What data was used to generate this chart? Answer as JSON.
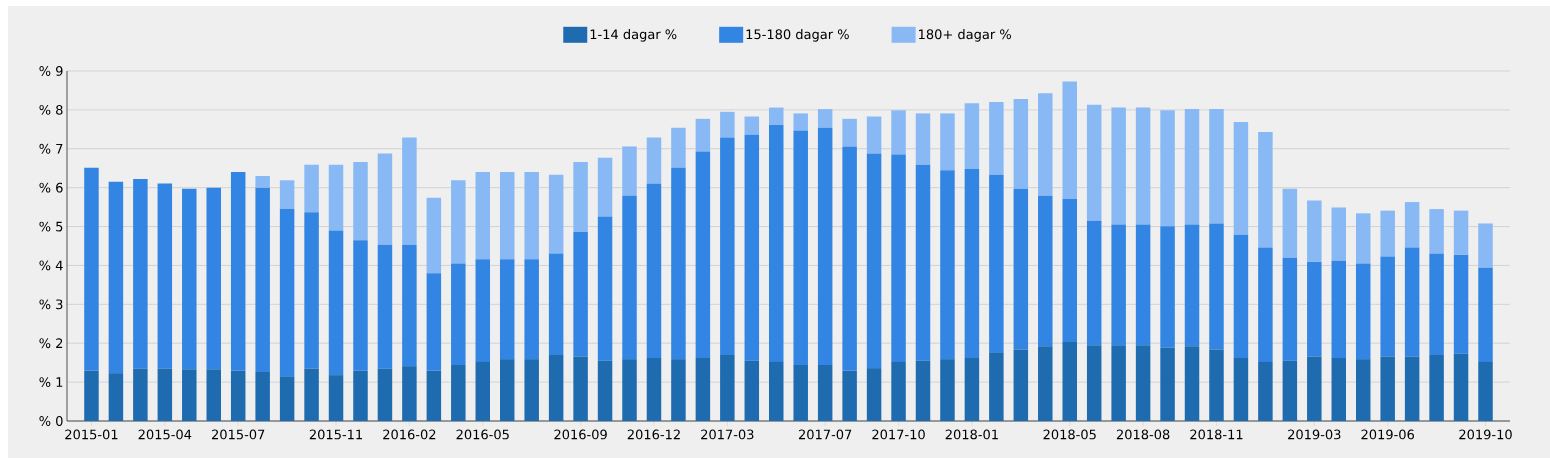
{
  "chart_data": {
    "type": "bar",
    "stacked": true,
    "legend": "top",
    "grid": "y",
    "categories": [
      "2015-01",
      null,
      null,
      "2015-04",
      null,
      null,
      "2015-07",
      null,
      null,
      null,
      "2015-11",
      null,
      null,
      "2016-02",
      null,
      null,
      "2016-05",
      null,
      null,
      null,
      "2016-09",
      null,
      null,
      "2016-12",
      null,
      null,
      "2017-03",
      null,
      null,
      null,
      "2017-07",
      null,
      null,
      "2017-10",
      null,
      null,
      "2018-01",
      null,
      null,
      null,
      "2018-05",
      null,
      null,
      "2018-08",
      null,
      null,
      "2018-11",
      null,
      null,
      null,
      "2019-03",
      null,
      null,
      "2019-06",
      null,
      null,
      null,
      "2019-10"
    ],
    "ylim": [
      0,
      9
    ],
    "yticks": [
      {
        "value": 0,
        "label": "% 0"
      },
      {
        "value": 1,
        "label": "% 1"
      },
      {
        "value": 2,
        "label": "% 2"
      },
      {
        "value": 3,
        "label": "% 3"
      },
      {
        "value": 4,
        "label": "% 4"
      },
      {
        "value": 5,
        "label": "% 5"
      },
      {
        "value": 6,
        "label": "% 6"
      },
      {
        "value": 7,
        "label": "% 7"
      },
      {
        "value": 8,
        "label": "% 8"
      },
      {
        "value": 9,
        "label": "% 9"
      }
    ],
    "series": [
      {
        "name": "1-14 dagar %",
        "color": "#1f6bb0",
        "values": [
          1.29,
          1.23,
          1.35,
          1.35,
          1.33,
          1.33,
          1.29,
          1.26,
          1.15,
          1.35,
          1.18,
          1.29,
          1.35,
          1.41,
          1.29,
          1.44,
          1.52,
          1.59,
          1.59,
          1.7,
          1.66,
          1.55,
          1.59,
          1.62,
          1.59,
          1.62,
          1.7,
          1.55,
          1.52,
          1.44,
          1.44,
          1.29,
          1.36,
          1.52,
          1.55,
          1.59,
          1.62,
          1.77,
          1.84,
          1.92,
          2.03,
          1.95,
          1.95,
          1.95,
          1.89,
          1.92,
          1.84,
          1.62,
          1.52,
          1.55,
          1.66,
          1.62,
          1.59,
          1.66,
          1.66,
          1.7,
          1.73,
          1.52
        ]
      },
      {
        "name": "15-180 dagar %",
        "color": "#3385e3",
        "values": [
          5.22,
          4.92,
          4.87,
          4.76,
          4.64,
          4.67,
          5.11,
          4.74,
          4.3,
          4.02,
          3.72,
          3.36,
          3.18,
          3.12,
          2.51,
          2.61,
          2.64,
          2.57,
          2.57,
          2.61,
          3.2,
          3.71,
          4.2,
          4.49,
          4.92,
          5.31,
          5.59,
          5.81,
          6.1,
          6.03,
          6.1,
          5.77,
          5.52,
          5.33,
          5.04,
          4.86,
          4.86,
          4.56,
          4.13,
          3.87,
          3.68,
          3.2,
          3.1,
          3.1,
          3.12,
          3.13,
          3.24,
          3.17,
          2.94,
          2.65,
          2.43,
          2.5,
          2.46,
          2.57,
          2.8,
          2.61,
          2.54,
          2.42
        ]
      },
      {
        "name": "180+ dagar %",
        "color": "#88b9f5",
        "values": [
          null,
          null,
          null,
          null,
          null,
          null,
          null,
          0.3,
          0.74,
          1.22,
          1.69,
          2.01,
          2.35,
          2.76,
          1.94,
          2.14,
          2.24,
          2.24,
          2.24,
          2.02,
          1.8,
          1.51,
          1.27,
          1.18,
          1.03,
          0.84,
          0.66,
          0.47,
          0.44,
          0.44,
          0.48,
          0.71,
          0.95,
          1.14,
          1.32,
          1.46,
          1.69,
          1.87,
          2.31,
          2.64,
          3.02,
          2.98,
          3.01,
          3.01,
          2.98,
          2.97,
          2.94,
          2.9,
          2.97,
          1.77,
          1.58,
          1.37,
          1.29,
          1.18,
          1.17,
          1.14,
          1.14,
          1.14
        ]
      }
    ]
  }
}
